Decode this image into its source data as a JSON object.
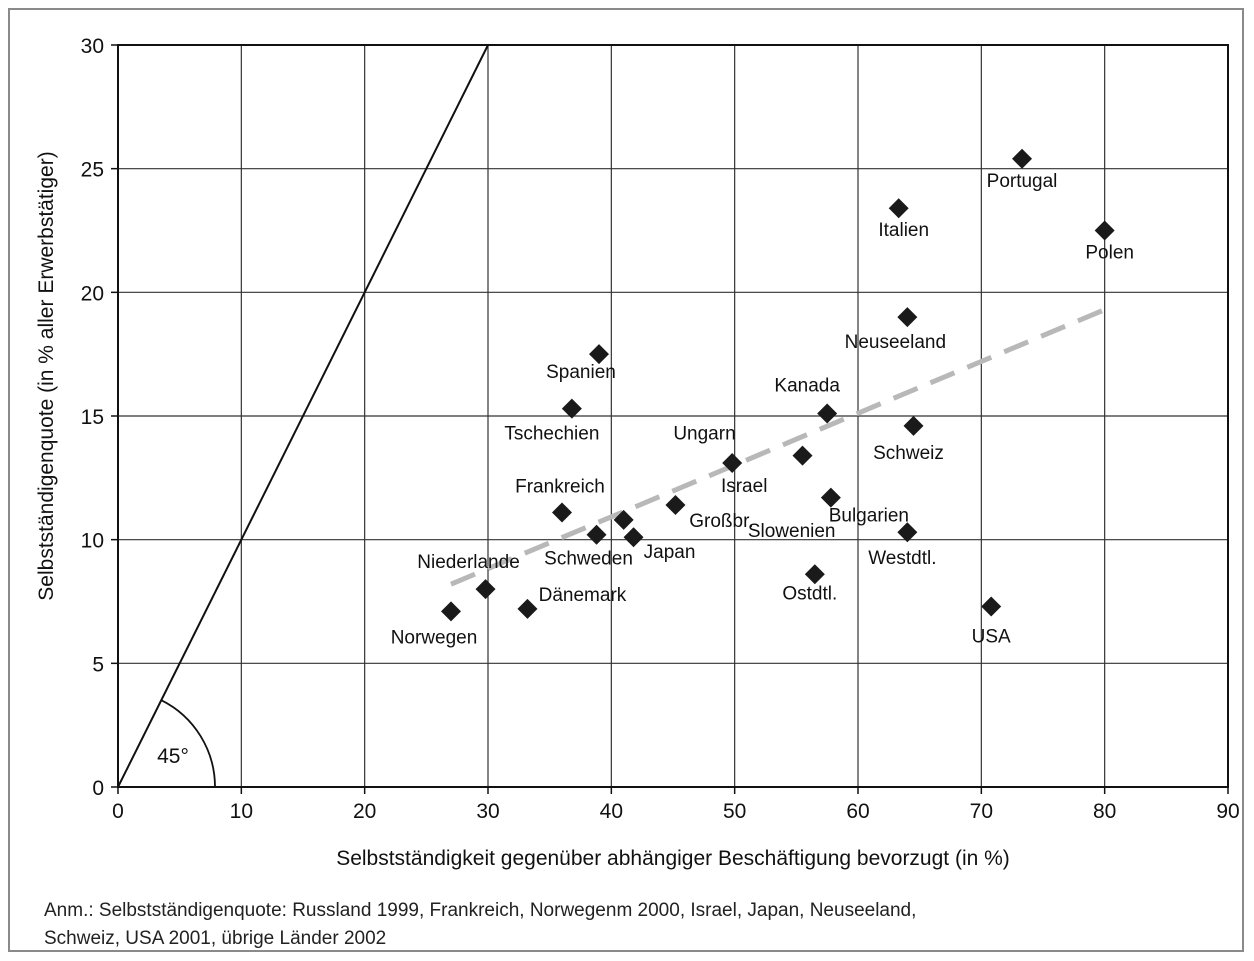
{
  "chart_data": {
    "type": "scatter",
    "title": "",
    "xlabel": "Selbstständigkeit gegenüber abhängiger Beschäftigung bevorzugt (in %)",
    "ylabel": "Selbstständigenquote (in % aller Erwerbstätiger)",
    "xlim": [
      0,
      90
    ],
    "ylim": [
      0,
      30
    ],
    "x_ticks": [
      "0",
      "10",
      "20",
      "30",
      "40",
      "50",
      "60",
      "70",
      "80",
      "90"
    ],
    "y_ticks": [
      "0",
      "5",
      "10",
      "15",
      "20",
      "25",
      "30"
    ],
    "grid": true,
    "marker": "diamond",
    "marker_color": "#1a1a1a",
    "points": [
      {
        "label": "Portugal",
        "x": 73.3,
        "y": 25.4
      },
      {
        "label": "Italien",
        "x": 63.3,
        "y": 23.4
      },
      {
        "label": "Polen",
        "x": 80,
        "y": 22.5
      },
      {
        "label": "Neuseeland",
        "x": 64,
        "y": 19
      },
      {
        "label": "Spanien",
        "x": 39,
        "y": 17.5
      },
      {
        "label": "Tschechien",
        "x": 36.8,
        "y": 15.3
      },
      {
        "label": "Kanada",
        "x": 57.5,
        "y": 15.1
      },
      {
        "label": "Schweiz",
        "x": 64.5,
        "y": 14.6
      },
      {
        "label": "Ungarn",
        "x": 55.5,
        "y": 13.4
      },
      {
        "label": "Israel",
        "x": 49.8,
        "y": 13.1
      },
      {
        "label": "Bulgarien",
        "x": 57.8,
        "y": 11.7
      },
      {
        "label": "Großbr.",
        "x": 45.2,
        "y": 11.4
      },
      {
        "label": "Frankreich",
        "x": 36,
        "y": 11.1
      },
      {
        "label": "Slowenien",
        "x": 41,
        "y": 10.8
      },
      {
        "label": "Westdtl.",
        "x": 64,
        "y": 10.3
      },
      {
        "label": "Schweden",
        "x": 38.8,
        "y": 10.2
      },
      {
        "label": "Japan",
        "x": 41.8,
        "y": 10.1
      },
      {
        "label": "Niederlande",
        "x": 29.8,
        "y": 8
      },
      {
        "label": "Ostdtl.",
        "x": 56.5,
        "y": 8.6
      },
      {
        "label": "USA",
        "x": 70.8,
        "y": 7.3
      },
      {
        "label": "Dänemark",
        "x": 33.2,
        "y": 7.2
      },
      {
        "label": "Norwegen",
        "x": 27,
        "y": 7.1
      }
    ],
    "diagonal_line": {
      "from": [
        0,
        0
      ],
      "to": [
        30,
        30
      ]
    },
    "trend_line": {
      "from": [
        27,
        8.2
      ],
      "to": [
        80,
        19.3
      ],
      "style": "dashed",
      "color": "#b8b8b8"
    },
    "angle_label": "45°"
  },
  "note": {
    "line1": "Anm.: Selbstständigenquote: Russland 1999, Frankreich, Norwegenm 2000, Israel, Japan, Neuseeland,",
    "line2": "Schweiz, USA 2001, übrige Länder 2002"
  }
}
